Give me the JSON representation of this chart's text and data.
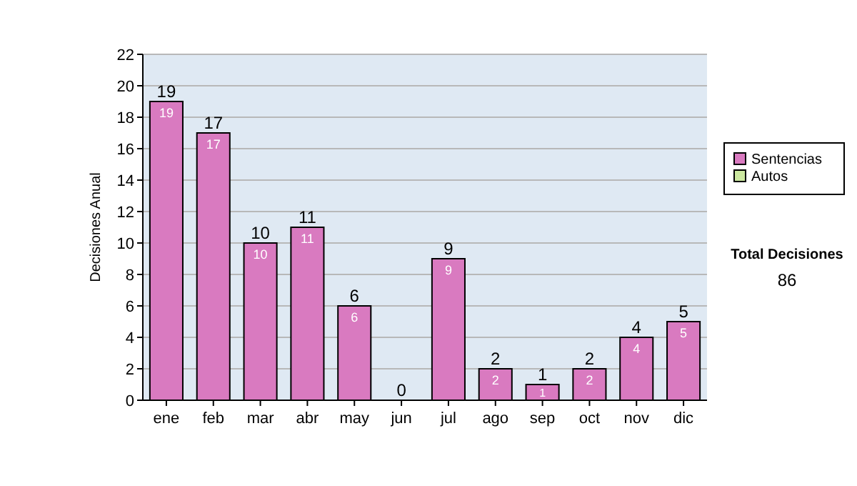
{
  "chart_data": {
    "type": "bar",
    "stacked": true,
    "ylabel": "Decisiones Anual",
    "categories": [
      "ene",
      "feb",
      "mar",
      "abr",
      "may",
      "jun",
      "jul",
      "ago",
      "sep",
      "oct",
      "nov",
      "dic"
    ],
    "series": [
      {
        "name": "Sentencias",
        "color": "#d97ac0",
        "values": [
          19,
          17,
          10,
          11,
          6,
          0,
          9,
          2,
          1,
          2,
          4,
          5
        ],
        "value_labels": [
          "19",
          "17",
          "10",
          "11",
          "6",
          null,
          "9",
          "2",
          "1",
          "2",
          "4",
          "5"
        ]
      },
      {
        "name": "Autos",
        "color": "#cce8a0",
        "values": [
          0,
          0,
          0,
          0,
          0,
          0,
          0,
          0,
          0,
          0,
          0,
          0
        ]
      }
    ],
    "totals": [
      "19",
      "17",
      "10",
      "11",
      "6",
      "0",
      "9",
      "2",
      "1",
      "2",
      "4",
      "5"
    ],
    "ylim": [
      0,
      22
    ],
    "yticks": [
      0,
      2,
      4,
      6,
      8,
      10,
      12,
      14,
      16,
      18,
      20,
      22
    ],
    "grid": "y",
    "legend": "right",
    "annotations": [
      "Total Decisiones",
      "86"
    ]
  }
}
